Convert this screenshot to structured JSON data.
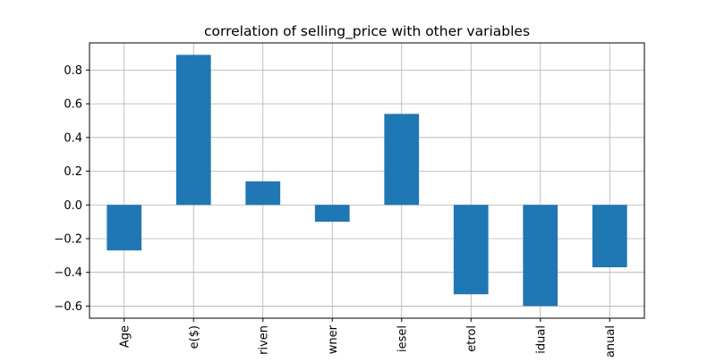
{
  "chart_data": {
    "type": "bar",
    "title": "correlation of selling_price with other variables",
    "xlabel": "",
    "ylabel": "",
    "categories": [
      "Age",
      "e($)",
      "riven",
      "wner",
      "iesel",
      "etrol",
      "idual",
      "anual"
    ],
    "values": [
      -0.27,
      0.89,
      0.14,
      -0.1,
      0.54,
      -0.53,
      -0.6,
      -0.37
    ],
    "ylim": [
      -0.672,
      0.961
    ],
    "yticks": [
      -0.6,
      -0.4,
      -0.2,
      0.0,
      0.2,
      0.4,
      0.6,
      0.8
    ],
    "ytick_labels": [
      "−0.6",
      "−0.4",
      "−0.2",
      "0.0",
      "0.2",
      "0.4",
      "0.6",
      "0.8"
    ],
    "grid": true,
    "bar_color": "#1f77b4",
    "grid_color": "#b0b0b0"
  }
}
